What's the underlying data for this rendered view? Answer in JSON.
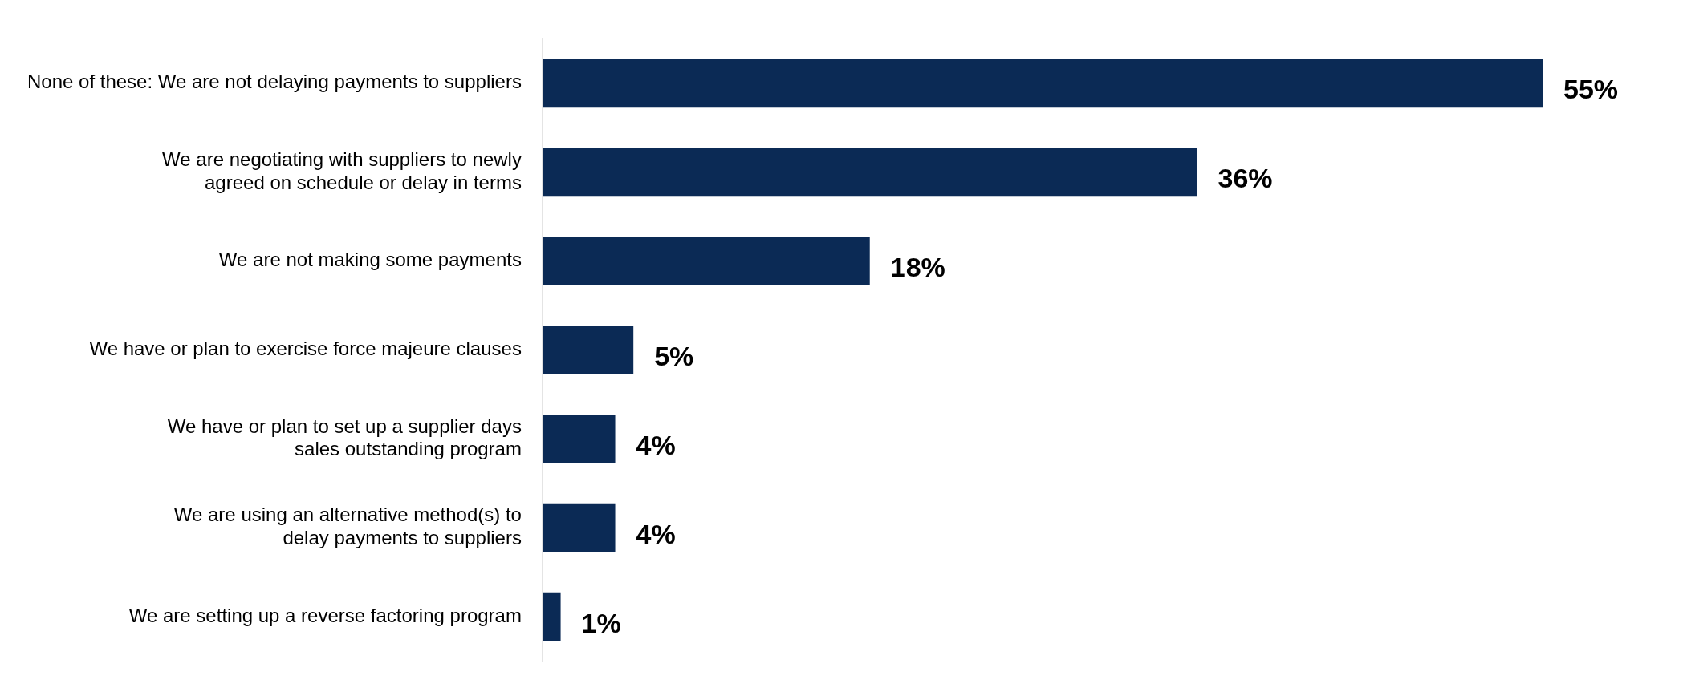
{
  "chart_data": {
    "type": "bar",
    "orientation": "horizontal",
    "categories": [
      "None of these: We are not delaying payments to suppliers",
      "We are negotiating with suppliers to newly agreed on schedule or delay in terms",
      "We are not making some payments",
      "We have or plan to exercise force majeure clauses",
      "We have or plan to set up a supplier days sales outstanding program",
      "We are using an alternative method(s) to delay payments to suppliers",
      "We are setting up a reverse factoring program"
    ],
    "values": [
      55,
      36,
      18,
      5,
      4,
      4,
      1
    ],
    "value_labels": [
      "55%",
      "36%",
      "18%",
      "5%",
      "4%",
      "4%",
      "1%"
    ],
    "color": "#0b2a55"
  }
}
